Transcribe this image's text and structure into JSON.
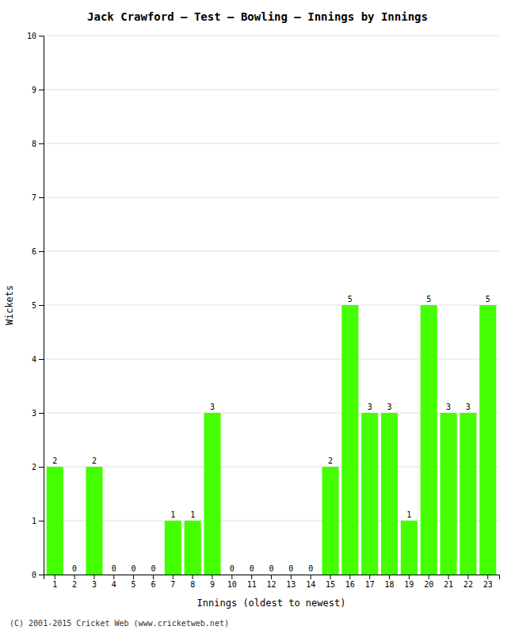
{
  "chart_data": {
    "type": "bar",
    "title": "Jack Crawford – Test – Bowling – Innings by Innings",
    "xlabel": "Innings (oldest to newest)",
    "ylabel": "Wickets",
    "categories": [
      "1",
      "2",
      "3",
      "4",
      "5",
      "6",
      "7",
      "8",
      "9",
      "10",
      "11",
      "12",
      "13",
      "14",
      "15",
      "16",
      "17",
      "18",
      "19",
      "20",
      "21",
      "22",
      "23"
    ],
    "values": [
      2,
      0,
      2,
      0,
      0,
      0,
      1,
      1,
      3,
      0,
      0,
      0,
      0,
      0,
      2,
      5,
      3,
      3,
      1,
      5,
      3,
      3,
      5
    ],
    "color": "#44ff00",
    "ylim": [
      0,
      10
    ],
    "yticks": [
      0,
      1,
      2,
      3,
      4,
      5,
      6,
      7,
      8,
      9,
      10
    ],
    "grid": true,
    "data_labels": true,
    "annotations": [
      "(C) 2001-2015 Cricket Web (www.cricketweb.net)"
    ]
  }
}
